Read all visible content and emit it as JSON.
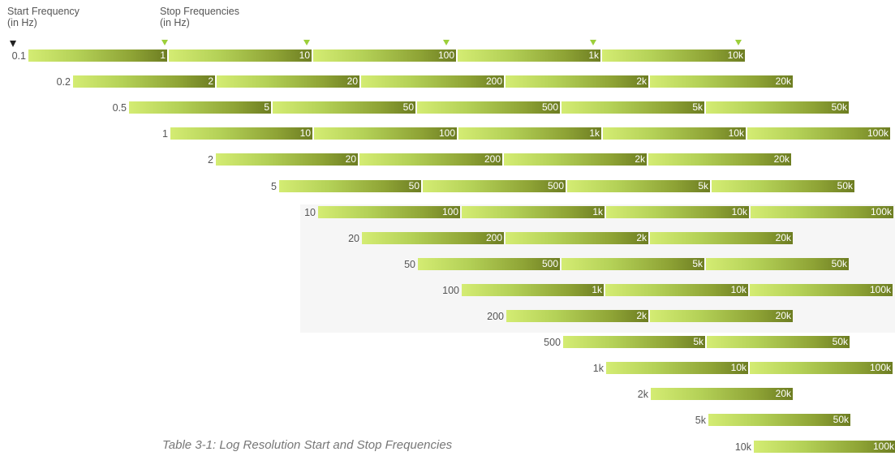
{
  "header": {
    "start_title": "Start Frequency",
    "start_unit": "(in Hz)",
    "stop_title": "Stop Frequencies",
    "stop_unit": "(in Hz)"
  },
  "caption": "Table 3-1: Log Resolution Start and Stop Frequencies",
  "colors": {
    "bar_light": "#d4ec73",
    "bar_dark": "#6d7d22",
    "marker_start": "#222222",
    "marker_stop": "#9ccf3a"
  },
  "rows": [
    {
      "start": "0.1",
      "stops": [
        "1",
        "10",
        "100",
        "1k",
        "10k"
      ]
    },
    {
      "start": "0.2",
      "stops": [
        "2",
        "20",
        "200",
        "2k",
        "20k"
      ]
    },
    {
      "start": "0.5",
      "stops": [
        "5",
        "50",
        "500",
        "5k",
        "50k"
      ]
    },
    {
      "start": "1",
      "stops": [
        "10",
        "100",
        "1k",
        "10k",
        "100k"
      ]
    },
    {
      "start": "2",
      "stops": [
        "20",
        "200",
        "2k",
        "20k"
      ]
    },
    {
      "start": "5",
      "stops": [
        "50",
        "500",
        "5k",
        "50k"
      ]
    },
    {
      "start": "10",
      "stops": [
        "100",
        "1k",
        "10k",
        "100k"
      ]
    },
    {
      "start": "20",
      "stops": [
        "200",
        "2k",
        "20k"
      ]
    },
    {
      "start": "50",
      "stops": [
        "500",
        "5k",
        "50k"
      ]
    },
    {
      "start": "100",
      "stops": [
        "1k",
        "10k",
        "100k"
      ]
    },
    {
      "start": "200",
      "stops": [
        "2k",
        "20k"
      ]
    },
    {
      "start": "500",
      "stops": [
        "5k",
        "50k"
      ]
    },
    {
      "start": "1k",
      "stops": [
        "10k",
        "100k"
      ]
    },
    {
      "start": "2k",
      "stops": [
        "20k"
      ]
    },
    {
      "start": "5k",
      "stops": [
        "50k"
      ]
    },
    {
      "start": "10k",
      "stops": [
        "100k"
      ]
    }
  ]
}
